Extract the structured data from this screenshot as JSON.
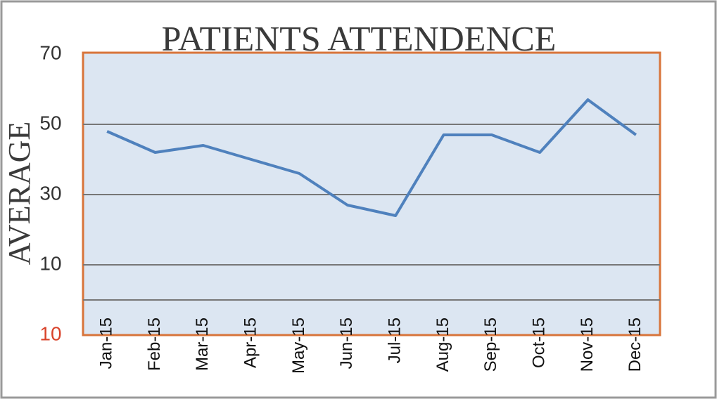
{
  "chart_data": {
    "type": "line",
    "title": "PATIENTS ATTENDENCE",
    "ylabel": "AVERAGE",
    "categories": [
      "Jan-15",
      "Feb-15",
      "Mar-15",
      "Apr-15",
      "May-15",
      "Jun-15",
      "Jul-15",
      "Aug-15",
      "Sep-15",
      "Oct-15",
      "Nov-15",
      "Dec-15"
    ],
    "series": [
      {
        "color": "#4f81bd",
        "values": [
          48,
          42,
          44,
          40,
          36,
          27,
          24,
          47,
          47,
          42,
          57,
          47
        ]
      }
    ],
    "ylim": [
      -10,
      70
    ],
    "yticks": [
      70,
      50,
      30,
      10,
      {
        "value": -10,
        "label": "10"
      }
    ],
    "ytick_colors": [
      "#333333",
      "#333333",
      "#333333",
      "#333333",
      "#d9432b"
    ],
    "grid_lines": [
      50,
      30,
      10,
      0
    ],
    "plot_fill": "#dce6f2",
    "plot_border": "#d8743a"
  }
}
